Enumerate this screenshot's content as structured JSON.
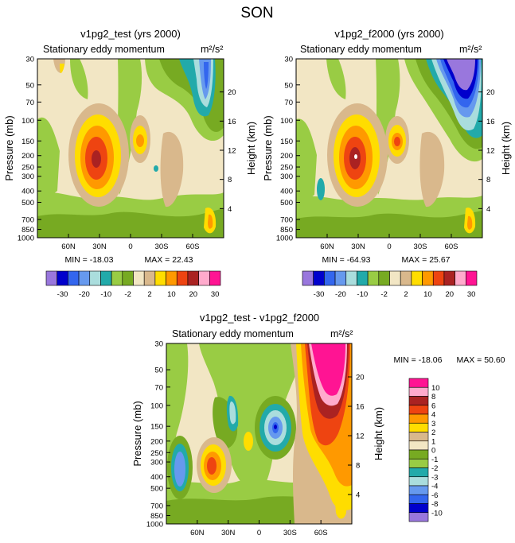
{
  "figure": {
    "title": "SON"
  },
  "colorbar_top": [
    "-30",
    "-20",
    "-10",
    "-2",
    "2",
    "10",
    "20",
    "30"
  ],
  "colorbar_bottom": [
    "10",
    "8",
    "6",
    "4",
    "3",
    "2",
    "1",
    "0",
    "-1",
    "-2",
    "-3",
    "-4",
    "-6",
    "-8",
    "-10"
  ],
  "colors": {
    "main": [
      "#9977dd",
      "#0000cc",
      "#3366ee",
      "#6699ee",
      "#aadddd",
      "#22aaaa",
      "#99cc44",
      "#77aa22",
      "#f2e6c4",
      "#d9b88c",
      "#ffdd00",
      "#ff9900",
      "#ee4411",
      "#aa2222",
      "#ffaacc",
      "#ff1493"
    ],
    "diff": [
      "#ff1493",
      "#ffaacc",
      "#aa2222",
      "#ee4411",
      "#ff9900",
      "#ffdd00",
      "#d9b88c",
      "#f2e6c4",
      "#77aa22",
      "#99cc44",
      "#22aaaa",
      "#aadddd",
      "#6699ee",
      "#3366ee",
      "#0000cc",
      "#9977dd"
    ]
  },
  "chart_data": [
    {
      "type": "heatmap",
      "title": "v1pg2_test (yrs 2000)",
      "subtitle": "Stationary eddy momentum",
      "units": "m²/s²",
      "xlabel": "",
      "ylabel": "Pressure (mb)",
      "y2label": "Height (km)",
      "x_ticks": [
        "60N",
        "30N",
        "0",
        "30S",
        "60S"
      ],
      "y_ticks": [
        "30",
        "50",
        "70",
        "100",
        "150",
        "200",
        "250",
        "300",
        "400",
        "500",
        "700",
        "850",
        "1000"
      ],
      "y2_ticks": [
        "20",
        "16",
        "12",
        "8",
        "4"
      ],
      "min_label": "MIN = -18.03",
      "max_label": "MAX =  22.43",
      "min": -18.03,
      "max": 22.43,
      "levels": [
        -30,
        -25,
        -20,
        -15,
        -10,
        -6,
        -2,
        -1,
        2,
        6,
        10,
        15,
        20,
        25,
        30
      ]
    },
    {
      "type": "heatmap",
      "title": "v1pg2_f2000 (yrs 2000)",
      "subtitle": "Stationary eddy momentum",
      "units": "m²/s²",
      "xlabel": "",
      "ylabel": "Pressure (mb)",
      "y2label": "Height (km)",
      "x_ticks": [
        "60N",
        "30N",
        "0",
        "30S",
        "60S"
      ],
      "y_ticks": [
        "30",
        "50",
        "70",
        "100",
        "150",
        "200",
        "250",
        "300",
        "400",
        "500",
        "700",
        "850",
        "1000"
      ],
      "y2_ticks": [
        "20",
        "16",
        "12",
        "8",
        "4"
      ],
      "min_label": "MIN = -64.93",
      "max_label": "MAX =  25.67",
      "min": -64.93,
      "max": 25.67,
      "levels": [
        -30,
        -25,
        -20,
        -15,
        -10,
        -6,
        -2,
        -1,
        2,
        6,
        10,
        15,
        20,
        25,
        30
      ]
    },
    {
      "type": "heatmap",
      "title": "v1pg2_test - v1pg2_f2000",
      "subtitle": "Stationary eddy momentum",
      "units": "m²/s²",
      "xlabel": "",
      "ylabel": "Pressure (mb)",
      "y2label": "Height (km)",
      "x_ticks": [
        "60N",
        "30N",
        "0",
        "30S",
        "60S"
      ],
      "y_ticks": [
        "30",
        "50",
        "70",
        "100",
        "150",
        "200",
        "250",
        "300",
        "400",
        "500",
        "700",
        "850",
        "1000"
      ],
      "y2_ticks": [
        "20",
        "16",
        "12",
        "8",
        "4"
      ],
      "min_label": "MIN = -18.06",
      "max_label": "MAX =  50.60",
      "min": -18.06,
      "max": 50.6,
      "levels": [
        -10,
        -8,
        -6,
        -4,
        -3,
        -2,
        -1,
        0,
        1,
        2,
        3,
        4,
        6,
        8,
        10
      ]
    }
  ]
}
